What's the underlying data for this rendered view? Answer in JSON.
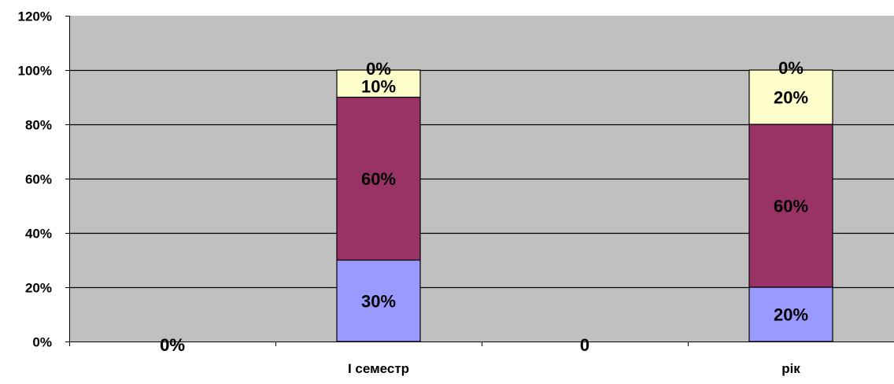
{
  "chart_data": {
    "type": "bar",
    "stacked": true,
    "normalized": true,
    "categories": [
      "",
      "І семестр",
      "",
      "рік"
    ],
    "series": [
      {
        "values": [
          0,
          0.3,
          0,
          0.2
        ],
        "labels": [
          "0%",
          "30%",
          "",
          "20%"
        ],
        "color": "#9999ff"
      },
      {
        "values": [
          0,
          0.6,
          0,
          0.6
        ],
        "labels": [
          "",
          "60%",
          "",
          "60%"
        ],
        "color": "#993366"
      },
      {
        "values": [
          0,
          0.1,
          0,
          0.2
        ],
        "labels": [
          "",
          "10%",
          "",
          "20%"
        ],
        "color": "#ffffcc"
      },
      {
        "values": [
          0,
          0.0,
          0,
          0.0
        ],
        "labels": [
          "0%",
          "0%",
          "0",
          "0%"
        ],
        "color": "#ccffff"
      }
    ],
    "y_ticks": [
      "0%",
      "20%",
      "40%",
      "60%",
      "80%",
      "100%",
      "120%"
    ],
    "ylim": [
      0,
      1.2
    ],
    "grid": true,
    "legend": "none",
    "plot_background": "#c0c0c0"
  }
}
